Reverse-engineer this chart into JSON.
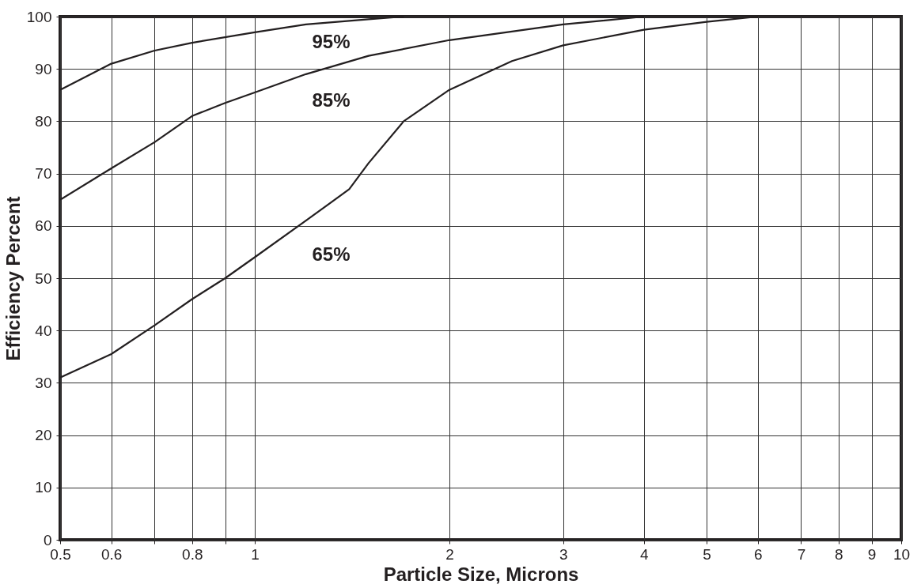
{
  "chart_data": {
    "type": "line",
    "xlabel": "Particle Size, Microns",
    "ylabel": "Efficiency Percent",
    "log": "x",
    "grid": true,
    "xlim": [
      0.5,
      10
    ],
    "ylim": [
      0,
      100
    ],
    "xticks": [
      0.5,
      0.6,
      {
        "value": 0.7,
        "label": null
      },
      0.8,
      {
        "value": 0.9,
        "label": null
      },
      1,
      2,
      3,
      4,
      5,
      6,
      7,
      8,
      9,
      10
    ],
    "yticks": [
      0,
      10,
      20,
      30,
      40,
      50,
      60,
      70,
      80,
      90,
      100
    ],
    "series": [
      {
        "name": "95%",
        "color": "#231f20",
        "x": [
          0.5,
          0.6,
          0.7,
          0.8,
          1,
          1.2,
          1.5,
          1.7
        ],
        "values": [
          86,
          91,
          93.5,
          95,
          97,
          98.5,
          99.5,
          100
        ]
      },
      {
        "name": "85%",
        "color": "#231f20",
        "x": [
          0.5,
          0.6,
          0.7,
          0.8,
          0.9,
          1,
          1.2,
          1.5,
          2,
          3,
          4
        ],
        "values": [
          65,
          71,
          76,
          81,
          83.5,
          85.5,
          89,
          92.5,
          95.5,
          98.5,
          100
        ]
      },
      {
        "name": "65%",
        "color": "#231f20",
        "x": [
          0.5,
          0.6,
          0.7,
          0.8,
          0.9,
          1,
          1.2,
          1.4,
          1.5,
          1.7,
          2,
          2.5,
          3,
          4,
          5,
          6
        ],
        "values": [
          31,
          35.5,
          41,
          46,
          50,
          54,
          61,
          67,
          72,
          80,
          86,
          91.5,
          94.5,
          97.5,
          99,
          100
        ]
      }
    ]
  }
}
